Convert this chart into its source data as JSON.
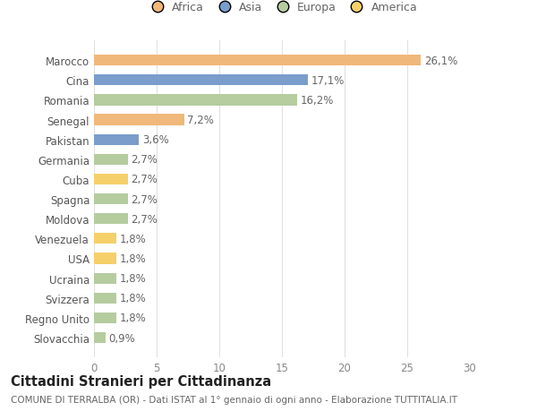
{
  "categories": [
    "Slovacchia",
    "Regno Unito",
    "Svizzera",
    "Ucraina",
    "USA",
    "Venezuela",
    "Moldova",
    "Spagna",
    "Cuba",
    "Germania",
    "Pakistan",
    "Senegal",
    "Romania",
    "Cina",
    "Marocco"
  ],
  "values": [
    0.9,
    1.8,
    1.8,
    1.8,
    1.8,
    1.8,
    2.7,
    2.7,
    2.7,
    2.7,
    3.6,
    7.2,
    16.2,
    17.1,
    26.1
  ],
  "labels": [
    "0,9%",
    "1,8%",
    "1,8%",
    "1,8%",
    "1,8%",
    "1,8%",
    "2,7%",
    "2,7%",
    "2,7%",
    "2,7%",
    "3,6%",
    "7,2%",
    "16,2%",
    "17,1%",
    "26,1%"
  ],
  "colors": [
    "#b5cc9f",
    "#b5cc9f",
    "#b5cc9f",
    "#b5cc9f",
    "#f5d06a",
    "#f5d06a",
    "#b5cc9f",
    "#b5cc9f",
    "#f5d06a",
    "#b5cc9f",
    "#7a9dcc",
    "#f0b87a",
    "#b5cc9f",
    "#7a9dcc",
    "#f0b87a"
  ],
  "continent_colors": {
    "Africa": "#f0b87a",
    "Asia": "#7a9dcc",
    "Europa": "#b5cc9f",
    "America": "#f5d06a"
  },
  "legend_labels": [
    "Africa",
    "Asia",
    "Europa",
    "America"
  ],
  "title": "Cittadini Stranieri per Cittadinanza",
  "subtitle": "COMUNE DI TERRALBA (OR) - Dati ISTAT al 1° gennaio di ogni anno - Elaborazione TUTTITALIA.IT",
  "xlim": [
    0,
    30
  ],
  "xticks": [
    0,
    5,
    10,
    15,
    20,
    25,
    30
  ],
  "background_color": "#ffffff",
  "bar_height": 0.55,
  "grid_color": "#e0e0e0",
  "label_fontsize": 8.5,
  "tick_fontsize": 8.5,
  "title_fontsize": 10.5,
  "subtitle_fontsize": 7.5
}
